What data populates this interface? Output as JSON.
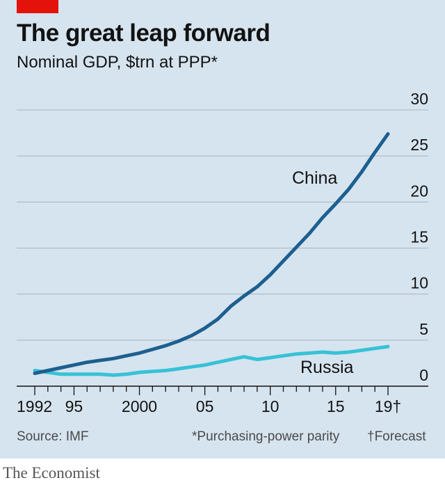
{
  "header": {
    "title": "The great leap forward",
    "subtitle": "Nominal GDP, $trn at PPP*"
  },
  "footer": {
    "source": "Source: IMF",
    "note": "*Purchasing-power parity",
    "forecast_note": "†Forecast"
  },
  "brand": "The Economist",
  "colors": {
    "background": "#d6e4ef",
    "china": "#1d5f8f",
    "russia": "#37c2d6",
    "accent": "#e3120b",
    "gridline": "#a9b3bb"
  },
  "chart_data": {
    "type": "line",
    "title": "The great leap forward",
    "subtitle": "Nominal GDP, $trn at PPP*",
    "x_range": [
      1992,
      2019
    ],
    "ylim": [
      0,
      30
    ],
    "y_axis_position": "right",
    "y_ticks": [
      "0",
      "5",
      "10",
      "15",
      "20",
      "25",
      "30"
    ],
    "x_ticks": [
      {
        "value": 1992,
        "label": "1992"
      },
      {
        "value": 1995,
        "label": "95"
      },
      {
        "value": 2000,
        "label": "2000"
      },
      {
        "value": 2005,
        "label": "05"
      },
      {
        "value": 2010,
        "label": "10"
      },
      {
        "value": 2015,
        "label": "15"
      },
      {
        "value": 2019,
        "label": "19†"
      }
    ],
    "grid": true,
    "x": [
      1992,
      1993,
      1994,
      1995,
      1996,
      1997,
      1998,
      1999,
      2000,
      2001,
      2002,
      2003,
      2004,
      2005,
      2006,
      2007,
      2008,
      2009,
      2010,
      2011,
      2012,
      2013,
      2014,
      2015,
      2016,
      2017,
      2018,
      2019
    ],
    "series": [
      {
        "name": "China",
        "values": [
          1.4,
          1.7,
          2.0,
          2.3,
          2.6,
          2.8,
          3.0,
          3.3,
          3.6,
          4.0,
          4.4,
          4.9,
          5.5,
          6.3,
          7.3,
          8.7,
          9.8,
          10.8,
          12.1,
          13.6,
          15.1,
          16.6,
          18.3,
          19.8,
          21.4,
          23.3,
          25.4,
          27.4
        ]
      },
      {
        "name": "Russia",
        "values": [
          1.7,
          1.5,
          1.3,
          1.3,
          1.3,
          1.3,
          1.2,
          1.3,
          1.5,
          1.6,
          1.7,
          1.9,
          2.1,
          2.3,
          2.6,
          2.9,
          3.2,
          2.9,
          3.1,
          3.3,
          3.5,
          3.6,
          3.7,
          3.6,
          3.7,
          3.9,
          4.1,
          4.3
        ]
      }
    ]
  }
}
